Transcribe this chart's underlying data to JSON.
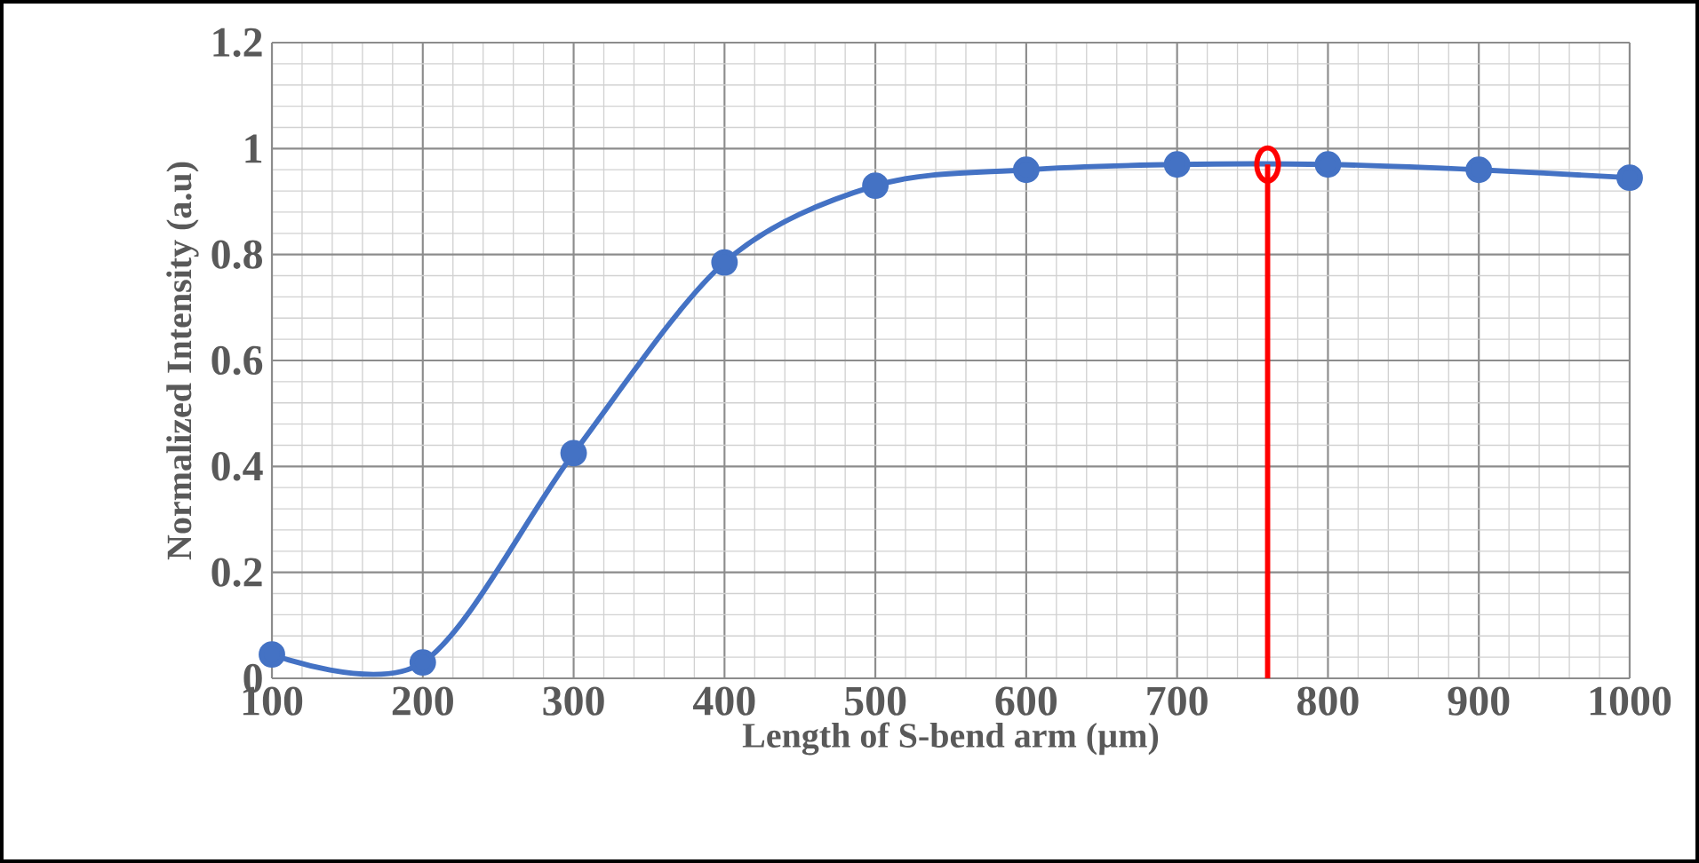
{
  "chart_data": {
    "type": "line",
    "xlabel": "Length of S-bend arm (µm)",
    "ylabel": "Normalized Intensity (a.u)",
    "xlim": [
      100,
      1000
    ],
    "xticks": [
      100,
      200,
      300,
      400,
      500,
      600,
      700,
      800,
      900,
      1000
    ],
    "ylim": [
      0,
      1.2
    ],
    "yticks": [
      0,
      0.2,
      0.4,
      0.6,
      0.8,
      1,
      1.2
    ],
    "grid": true,
    "series": [
      {
        "type": "line",
        "color": "#4472c4",
        "marker": "circle",
        "x": [
          100,
          200,
          300,
          400,
          500,
          600,
          700,
          800,
          900,
          1000
        ],
        "values": [
          0.045,
          0.03,
          0.425,
          0.785,
          0.93,
          0.96,
          0.97,
          0.97,
          0.96,
          0.945
        ]
      },
      {
        "type": "line",
        "color": "#ff0000",
        "marker": "none",
        "x": [
          760,
          760
        ],
        "values": [
          0,
          0.97
        ]
      },
      {
        "type": "scatter",
        "color": "#ff0000",
        "marker": "circle",
        "x": [
          760
        ],
        "values": [
          0.97
        ]
      }
    ]
  }
}
